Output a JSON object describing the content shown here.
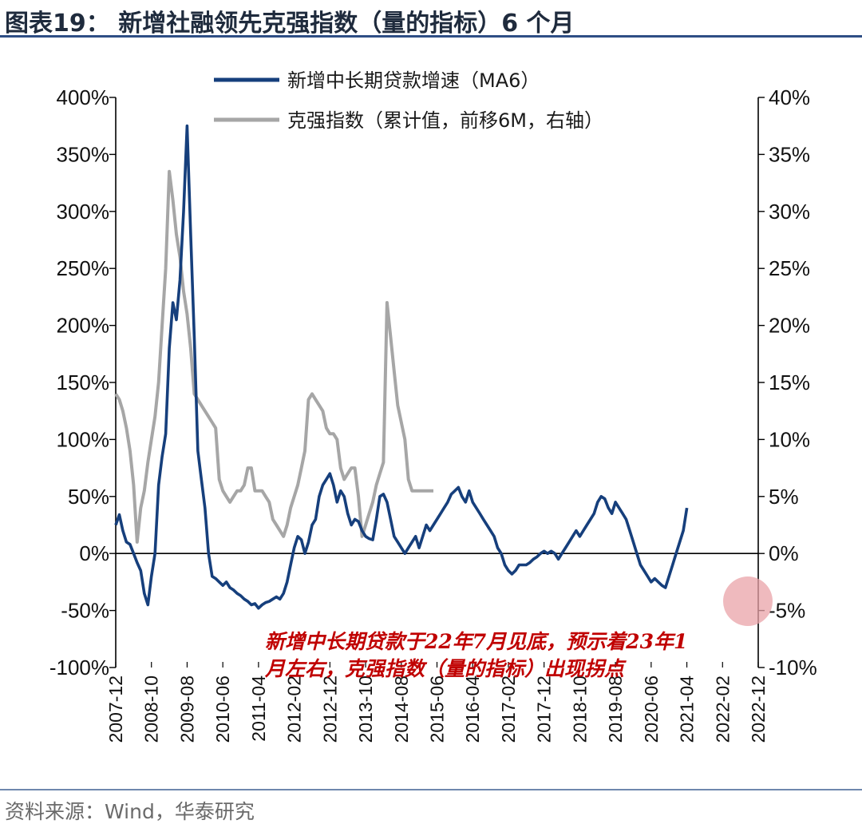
{
  "header": {
    "title": "图表19： 新增社融领先克强指数（量的指标）6 个月"
  },
  "footer": {
    "source": "资料来源：Wind，华泰研究"
  },
  "colors": {
    "series1": "#163f7c",
    "series2": "#a6a6a6",
    "title_rule": "#2e4e85",
    "annotation": "#c00000",
    "highlight_circle": "#e9a3a8"
  },
  "chart_data": {
    "type": "line",
    "left_axis": {
      "ticks": [
        -100,
        -50,
        0,
        50,
        100,
        150,
        200,
        250,
        300,
        350,
        400
      ],
      "tick_labels": [
        "-100%",
        "-50%",
        "0%",
        "50%",
        "100%",
        "150%",
        "200%",
        "250%",
        "300%",
        "350%",
        "400%"
      ],
      "ylim": [
        -100,
        400
      ]
    },
    "right_axis": {
      "ticks": [
        -10,
        -5,
        0,
        5,
        10,
        15,
        20,
        25,
        30,
        35,
        40
      ],
      "tick_labels": [
        "-10%",
        "-5%",
        "0%",
        "5%",
        "10%",
        "15%",
        "20%",
        "25%",
        "30%",
        "35%",
        "40%"
      ],
      "ylim": [
        -10,
        40
      ]
    },
    "x_tick_labels": [
      "2007-12",
      "2008-10",
      "2009-08",
      "2010-06",
      "2011-04",
      "2012-02",
      "2012-12",
      "2013-10",
      "2014-08",
      "2015-06",
      "2016-04",
      "2017-02",
      "2017-12",
      "2018-10",
      "2019-08",
      "2020-06",
      "2021-04",
      "2022-02",
      "2022-12"
    ],
    "x_start": "2007-12",
    "x_end": "2022-12",
    "series": [
      {
        "name": "新增中长期贷款增速（MA6）",
        "axis": "left",
        "points": [
          [
            "2007-12",
            25
          ],
          [
            "2008-01",
            34
          ],
          [
            "2008-02",
            20
          ],
          [
            "2008-03",
            10
          ],
          [
            "2008-04",
            8
          ],
          [
            "2008-05",
            0
          ],
          [
            "2008-06",
            -8
          ],
          [
            "2008-07",
            -15
          ],
          [
            "2008-08",
            -35
          ],
          [
            "2008-09",
            -45
          ],
          [
            "2008-10",
            -20
          ],
          [
            "2008-11",
            0
          ],
          [
            "2008-12",
            60
          ],
          [
            "2009-01",
            85
          ],
          [
            "2009-02",
            105
          ],
          [
            "2009-03",
            180
          ],
          [
            "2009-04",
            220
          ],
          [
            "2009-05",
            205
          ],
          [
            "2009-06",
            240
          ],
          [
            "2009-07",
            300
          ],
          [
            "2009-08",
            375
          ],
          [
            "2009-09",
            280
          ],
          [
            "2009-10",
            190
          ],
          [
            "2009-11",
            90
          ],
          [
            "2009-12",
            65
          ],
          [
            "2010-01",
            40
          ],
          [
            "2010-02",
            0
          ],
          [
            "2010-03",
            -20
          ],
          [
            "2010-04",
            -22
          ],
          [
            "2010-05",
            -25
          ],
          [
            "2010-06",
            -28
          ],
          [
            "2010-07",
            -25
          ],
          [
            "2010-08",
            -30
          ],
          [
            "2010-09",
            -32
          ],
          [
            "2010-10",
            -35
          ],
          [
            "2010-11",
            -37
          ],
          [
            "2010-12",
            -40
          ],
          [
            "2011-01",
            -42
          ],
          [
            "2011-02",
            -45
          ],
          [
            "2011-03",
            -44
          ],
          [
            "2011-04",
            -48
          ],
          [
            "2011-05",
            -45
          ],
          [
            "2011-06",
            -43
          ],
          [
            "2011-07",
            -42
          ],
          [
            "2011-08",
            -40
          ],
          [
            "2011-09",
            -38
          ],
          [
            "2011-10",
            -40
          ],
          [
            "2011-11",
            -35
          ],
          [
            "2011-12",
            -25
          ],
          [
            "2012-01",
            -10
          ],
          [
            "2012-02",
            5
          ],
          [
            "2012-03",
            15
          ],
          [
            "2012-04",
            12
          ],
          [
            "2012-05",
            0
          ],
          [
            "2012-06",
            10
          ],
          [
            "2012-07",
            25
          ],
          [
            "2012-08",
            30
          ],
          [
            "2012-09",
            50
          ],
          [
            "2012-10",
            60
          ],
          [
            "2012-11",
            65
          ],
          [
            "2012-12",
            70
          ],
          [
            "2013-01",
            60
          ],
          [
            "2013-02",
            45
          ],
          [
            "2013-03",
            55
          ],
          [
            "2013-04",
            50
          ],
          [
            "2013-05",
            35
          ],
          [
            "2013-06",
            25
          ],
          [
            "2013-07",
            30
          ],
          [
            "2013-08",
            28
          ],
          [
            "2013-09",
            20
          ],
          [
            "2013-10",
            15
          ],
          [
            "2013-11",
            13
          ],
          [
            "2013-12",
            12
          ],
          [
            "2014-01",
            30
          ],
          [
            "2014-02",
            50
          ],
          [
            "2014-03",
            52
          ],
          [
            "2014-04",
            45
          ],
          [
            "2014-05",
            30
          ],
          [
            "2014-06",
            15
          ],
          [
            "2014-07",
            10
          ],
          [
            "2014-08",
            5
          ],
          [
            "2014-09",
            0
          ],
          [
            "2014-10",
            5
          ],
          [
            "2014-11",
            10
          ],
          [
            "2014-12",
            15
          ],
          [
            "2015-01",
            5
          ],
          [
            "2015-02",
            15
          ],
          [
            "2015-03",
            25
          ],
          [
            "2015-04",
            20
          ],
          [
            "2015-05",
            25
          ],
          [
            "2015-06",
            30
          ],
          [
            "2015-07",
            35
          ],
          [
            "2015-08",
            40
          ],
          [
            "2015-09",
            45
          ],
          [
            "2015-10",
            52
          ],
          [
            "2015-11",
            55
          ],
          [
            "2015-12",
            58
          ],
          [
            "2016-01",
            50
          ],
          [
            "2016-02",
            45
          ],
          [
            "2016-03",
            55
          ],
          [
            "2016-04",
            45
          ],
          [
            "2016-05",
            40
          ],
          [
            "2016-06",
            35
          ],
          [
            "2016-07",
            30
          ],
          [
            "2016-08",
            25
          ],
          [
            "2016-09",
            20
          ],
          [
            "2016-10",
            15
          ],
          [
            "2016-11",
            5
          ],
          [
            "2016-12",
            0
          ],
          [
            "2017-01",
            -10
          ],
          [
            "2017-02",
            -15
          ],
          [
            "2017-03",
            -18
          ],
          [
            "2017-04",
            -15
          ],
          [
            "2017-05",
            -10
          ],
          [
            "2017-06",
            -10
          ],
          [
            "2017-07",
            -10
          ],
          [
            "2017-08",
            -8
          ],
          [
            "2017-09",
            -5
          ],
          [
            "2017-10",
            -3
          ],
          [
            "2017-11",
            0
          ],
          [
            "2017-12",
            2
          ],
          [
            "2018-01",
            0
          ],
          [
            "2018-02",
            2
          ],
          [
            "2018-03",
            0
          ],
          [
            "2018-04",
            -5
          ],
          [
            "2018-05",
            0
          ],
          [
            "2018-06",
            5
          ],
          [
            "2018-07",
            10
          ],
          [
            "2018-08",
            15
          ],
          [
            "2018-09",
            20
          ],
          [
            "2018-10",
            15
          ],
          [
            "2018-11",
            20
          ],
          [
            "2018-12",
            25
          ],
          [
            "2019-01",
            30
          ],
          [
            "2019-02",
            35
          ],
          [
            "2019-03",
            45
          ],
          [
            "2019-04",
            50
          ],
          [
            "2019-05",
            48
          ],
          [
            "2019-06",
            40
          ],
          [
            "2019-07",
            35
          ],
          [
            "2019-08",
            45
          ],
          [
            "2019-09",
            40
          ],
          [
            "2019-10",
            35
          ],
          [
            "2019-11",
            30
          ],
          [
            "2019-12",
            20
          ],
          [
            "2020-01",
            10
          ],
          [
            "2020-02",
            0
          ],
          [
            "2020-03",
            -10
          ],
          [
            "2020-04",
            -15
          ],
          [
            "2020-05",
            -20
          ],
          [
            "2020-06",
            -25
          ],
          [
            "2020-07",
            -22
          ],
          [
            "2020-08",
            -25
          ],
          [
            "2020-09",
            -28
          ],
          [
            "2020-10",
            -30
          ],
          [
            "2020-11",
            -20
          ],
          [
            "2020-12",
            -10
          ],
          [
            "2021-01",
            0
          ],
          [
            "2021-02",
            10
          ],
          [
            "2021-03",
            20
          ],
          [
            "2021-04",
            40
          ]
        ]
      },
      {
        "name": "克强指数（累计值，前移6M，右轴）",
        "axis": "right",
        "points": [
          [
            "2007-12",
            14
          ],
          [
            "2008-01",
            13.5
          ],
          [
            "2008-02",
            12.5
          ],
          [
            "2008-03",
            11
          ],
          [
            "2008-04",
            9
          ],
          [
            "2008-05",
            6
          ],
          [
            "2008-06",
            1
          ],
          [
            "2008-07",
            4
          ],
          [
            "2008-08",
            5.5
          ],
          [
            "2008-09",
            8
          ],
          [
            "2008-10",
            10
          ],
          [
            "2008-11",
            12
          ],
          [
            "2008-12",
            15
          ],
          [
            "2009-01",
            20
          ],
          [
            "2009-02",
            25
          ],
          [
            "2009-03",
            33.5
          ],
          [
            "2009-04",
            31
          ],
          [
            "2009-05",
            28
          ],
          [
            "2009-06",
            26
          ],
          [
            "2009-07",
            23
          ],
          [
            "2009-08",
            21
          ],
          [
            "2009-09",
            18
          ],
          [
            "2009-10",
            14
          ],
          [
            "2009-11",
            13.5
          ],
          [
            "2009-12",
            13
          ],
          [
            "2010-01",
            12.5
          ],
          [
            "2010-02",
            12
          ],
          [
            "2010-03",
            11.5
          ],
          [
            "2010-04",
            11
          ],
          [
            "2010-05",
            6.5
          ],
          [
            "2010-06",
            5.5
          ],
          [
            "2010-07",
            5
          ],
          [
            "2010-08",
            4.5
          ],
          [
            "2010-09",
            5
          ],
          [
            "2010-10",
            5.5
          ],
          [
            "2010-11",
            5.5
          ],
          [
            "2010-12",
            6
          ],
          [
            "2011-01",
            7.5
          ],
          [
            "2011-02",
            7.5
          ],
          [
            "2011-03",
            5.5
          ],
          [
            "2011-04",
            5.5
          ],
          [
            "2011-05",
            5.5
          ],
          [
            "2011-06",
            5
          ],
          [
            "2011-07",
            4.5
          ],
          [
            "2011-08",
            3
          ],
          [
            "2011-09",
            2.5
          ],
          [
            "2011-10",
            2
          ],
          [
            "2011-11",
            1.5
          ],
          [
            "2011-12",
            2.5
          ],
          [
            "2012-01",
            4
          ],
          [
            "2012-02",
            5
          ],
          [
            "2012-03",
            6
          ],
          [
            "2012-04",
            7.5
          ],
          [
            "2012-05",
            9
          ],
          [
            "2012-06",
            13.5
          ],
          [
            "2012-07",
            14
          ],
          [
            "2012-08",
            13.5
          ],
          [
            "2012-09",
            13
          ],
          [
            "2012-10",
            12.5
          ],
          [
            "2012-11",
            11
          ],
          [
            "2012-12",
            10.5
          ],
          [
            "2013-01",
            10.5
          ],
          [
            "2013-02",
            10
          ],
          [
            "2013-03",
            7.5
          ],
          [
            "2013-04",
            6.5
          ],
          [
            "2013-05",
            7
          ],
          [
            "2013-06",
            7.5
          ],
          [
            "2013-07",
            7.5
          ],
          [
            "2013-08",
            5
          ],
          [
            "2013-09",
            1.5
          ],
          [
            "2013-10",
            2.5
          ],
          [
            "2013-11",
            3.5
          ],
          [
            "2013-12",
            4.5
          ],
          [
            "2014-01",
            6
          ],
          [
            "2014-02",
            7
          ],
          [
            "2014-03",
            8
          ],
          [
            "2014-04",
            22
          ],
          [
            "2014-05",
            19
          ],
          [
            "2014-06",
            16
          ],
          [
            "2014-07",
            13
          ],
          [
            "2014-08",
            11.5
          ],
          [
            "2014-09",
            10
          ],
          [
            "2014-10",
            6.5
          ],
          [
            "2014-11",
            5.5
          ],
          [
            "2014-12",
            5.5
          ],
          [
            "2015-01",
            5.5
          ],
          [
            "2015-02",
            5.5
          ],
          [
            "2015-03",
            5.5
          ],
          [
            "2015-04",
            5.5
          ],
          [
            "2015-05",
            5.5
          ]
        ]
      }
    ],
    "legend_position": "top-center",
    "grid": false,
    "annotation": {
      "line1": "新增中长期贷款于22年7月见底，预示着23年1",
      "line2": "月左右，克强指数（量的指标）出现拐点"
    }
  }
}
